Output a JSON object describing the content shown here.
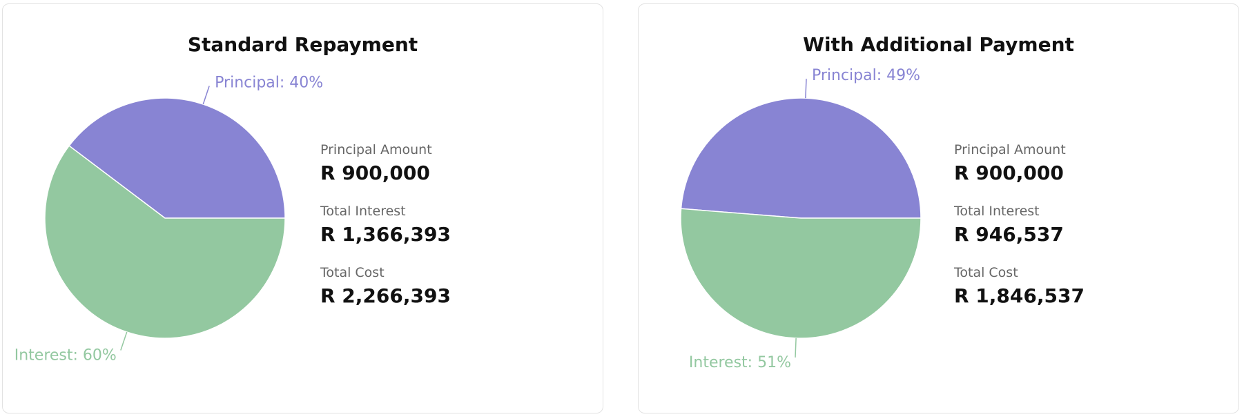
{
  "colors": {
    "principal": "#8884d3",
    "interest": "#93c8a0",
    "border": "#e2e2e2"
  },
  "panels": [
    {
      "id": "standard",
      "title": "Standard Repayment",
      "stats": [
        {
          "label": "Principal Amount",
          "value": "R 900,000"
        },
        {
          "label": "Total Interest",
          "value": "R 1,366,393"
        },
        {
          "label": "Total Cost",
          "value": "R 2,266,393"
        }
      ]
    },
    {
      "id": "additional",
      "title": "With Additional Payment",
      "stats": [
        {
          "label": "Principal Amount",
          "value": "R 900,000"
        },
        {
          "label": "Total Interest",
          "value": "R 946,537"
        },
        {
          "label": "Total Cost",
          "value": "R 1,846,537"
        }
      ]
    }
  ],
  "chart_data": [
    {
      "type": "pie",
      "title": "Standard Repayment",
      "slices": [
        {
          "name": "Principal",
          "value": 900000,
          "label": "Principal: 40%"
        },
        {
          "name": "Interest",
          "value": 1366393,
          "label": "Interest: 60%"
        }
      ]
    },
    {
      "type": "pie",
      "title": "With Additional Payment",
      "slices": [
        {
          "name": "Principal",
          "value": 900000,
          "label": "Principal: 49%"
        },
        {
          "name": "Interest",
          "value": 946537,
          "label": "Interest: 51%"
        }
      ]
    }
  ]
}
